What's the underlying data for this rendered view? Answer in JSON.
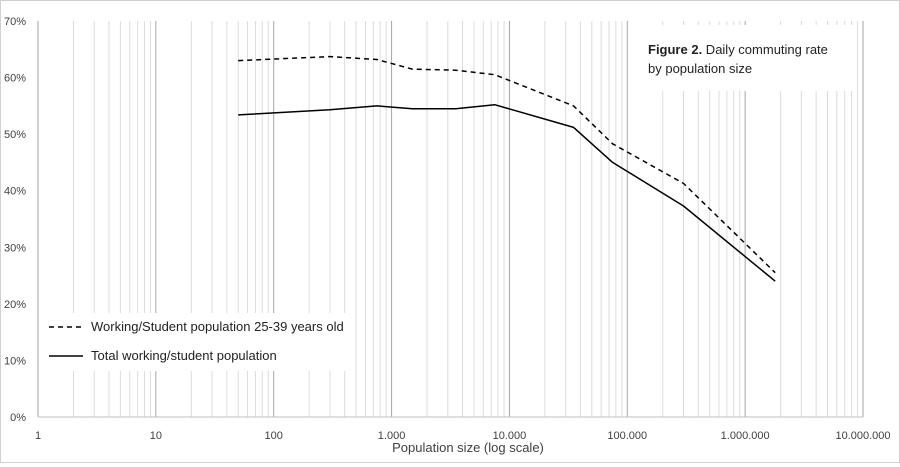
{
  "chart_data": {
    "type": "line",
    "title": "",
    "xlabel": "Population size (log scale)",
    "ylabel": "",
    "x_scale": "log",
    "xlim": [
      1,
      10000000
    ],
    "ylim": [
      0,
      70
    ],
    "grid": true,
    "x_ticks": [
      "1",
      "10",
      "100",
      "1.000",
      "10.000",
      "100.000",
      "1.000.000",
      "10.000.000"
    ],
    "y_ticks": [
      "0%",
      "10%",
      "20%",
      "30%",
      "40%",
      "50%",
      "60%",
      "70%"
    ],
    "annotation": {
      "bold": "Figure 2.",
      "line1": " Daily commuting rate",
      "line2": "by population size"
    },
    "legend_position": "bottom-left",
    "series": [
      {
        "name": "Working/Student population 25-39 years old",
        "style": "dashed",
        "color": "#000000",
        "x": [
          50,
          300,
          750,
          1500,
          3500,
          7500,
          35000,
          75000,
          300000,
          1800000
        ],
        "y": [
          63.0,
          63.7,
          63.2,
          61.5,
          61.3,
          60.5,
          55.0,
          48.3,
          41.3,
          25.5
        ]
      },
      {
        "name": "Total working/student population",
        "style": "solid",
        "color": "#000000",
        "x": [
          50,
          300,
          750,
          1500,
          3500,
          7500,
          35000,
          75000,
          300000,
          1800000
        ],
        "y": [
          53.4,
          54.3,
          55.0,
          54.5,
          54.5,
          55.2,
          51.2,
          45.0,
          37.3,
          24.0
        ]
      }
    ]
  }
}
